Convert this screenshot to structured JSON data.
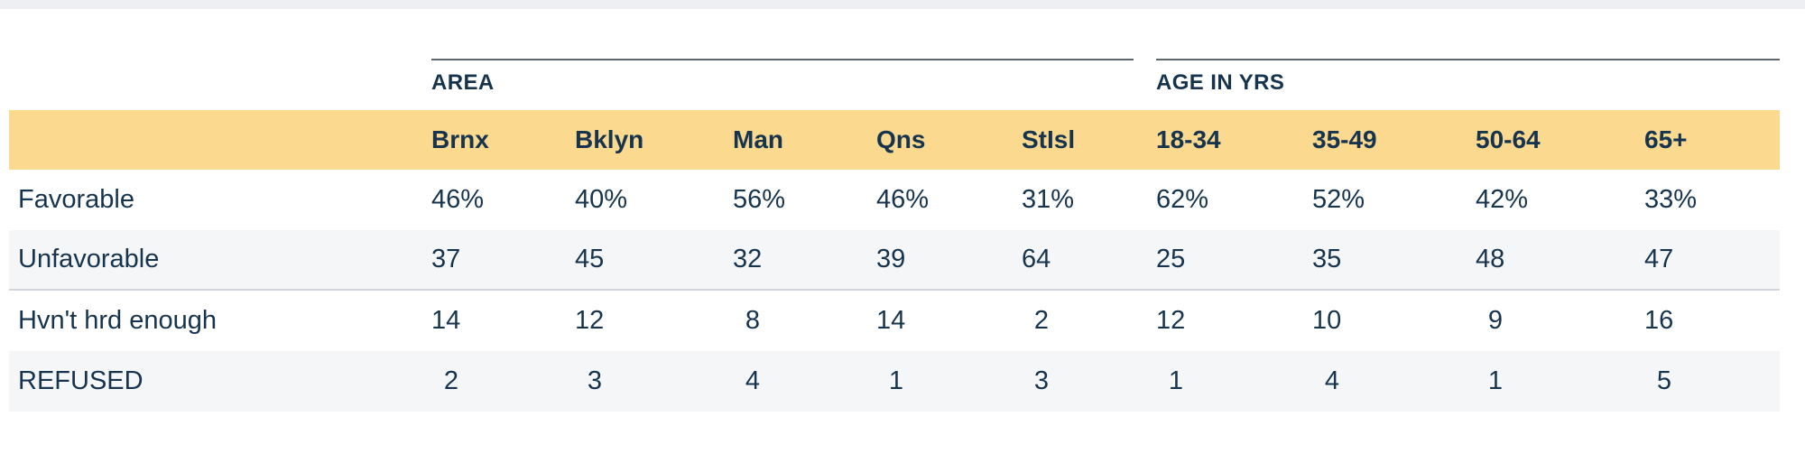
{
  "colors": {
    "top_strip": "#EDEFF2",
    "header_band": "#FBD98F",
    "row_stripe": "#F4F6F8",
    "text_navy": "#17344E",
    "group_rule": "#5C666F"
  },
  "table": {
    "column_groups": [
      {
        "label": "AREA",
        "span": 5
      },
      {
        "label": "AGE IN YRS",
        "span": 4
      }
    ],
    "columns": [
      "Brnx",
      "Bklyn",
      "Man",
      "Qns",
      "StIsl",
      "18-34",
      "35-49",
      "50-64",
      "65+"
    ],
    "rows": [
      {
        "label": "Favorable",
        "values": [
          "46%",
          "40%",
          "56%",
          "46%",
          "31%",
          "62%",
          "52%",
          "42%",
          "33%"
        ]
      },
      {
        "label": "Unfavorable",
        "values": [
          "37",
          "45",
          "32",
          "39",
          "64",
          "25",
          "35",
          "48",
          "47"
        ]
      },
      {
        "label": "Hvn't hrd enough",
        "values": [
          "14",
          "12",
          "8",
          "14",
          "2",
          "12",
          "10",
          "9",
          "16"
        ]
      },
      {
        "label": "REFUSED",
        "values": [
          "2",
          "3",
          "4",
          "1",
          "3",
          "1",
          "4",
          "1",
          "5"
        ]
      }
    ]
  },
  "chart_data": {
    "type": "table",
    "title": "",
    "column_groups": [
      {
        "label": "AREA",
        "columns": [
          "Brnx",
          "Bklyn",
          "Man",
          "Qns",
          "StIsl"
        ]
      },
      {
        "label": "AGE IN YRS",
        "columns": [
          "18-34",
          "35-49",
          "50-64",
          "65+"
        ]
      }
    ],
    "categories": [
      "Brnx",
      "Bklyn",
      "Man",
      "Qns",
      "StIsl",
      "18-34",
      "35-49",
      "50-64",
      "65+"
    ],
    "series": [
      {
        "name": "Favorable",
        "values": [
          46,
          40,
          56,
          46,
          31,
          62,
          52,
          42,
          33
        ],
        "unit": "%"
      },
      {
        "name": "Unfavorable",
        "values": [
          37,
          45,
          32,
          39,
          64,
          25,
          35,
          48,
          47
        ],
        "unit": "%"
      },
      {
        "name": "Hvn't hrd enough",
        "values": [
          14,
          12,
          8,
          14,
          2,
          12,
          10,
          9,
          16
        ],
        "unit": "%"
      },
      {
        "name": "REFUSED",
        "values": [
          2,
          3,
          4,
          1,
          3,
          1,
          4,
          1,
          5
        ],
        "unit": "%"
      }
    ]
  }
}
